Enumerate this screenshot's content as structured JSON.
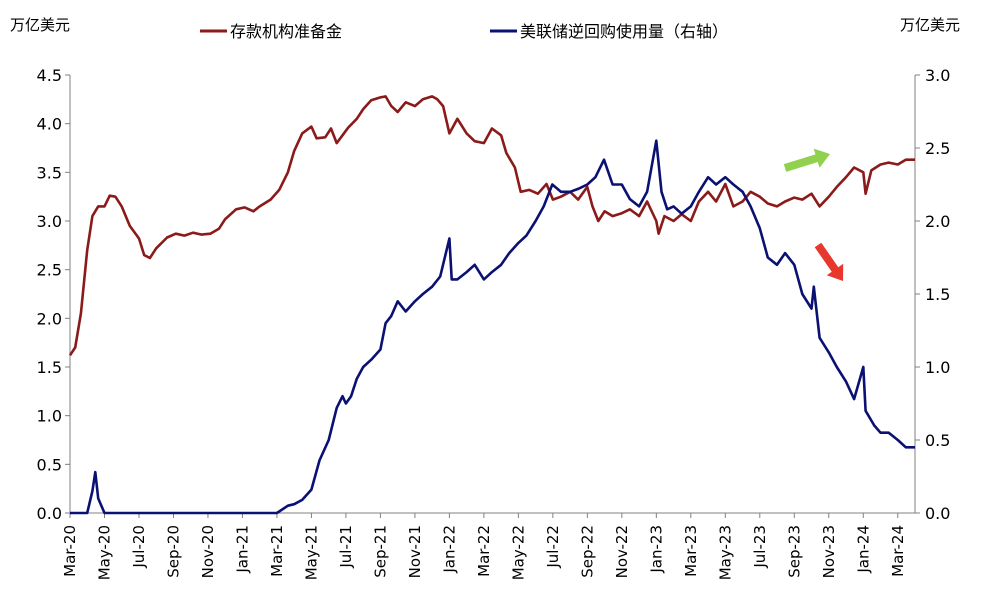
{
  "chart_data": {
    "type": "line",
    "left_unit": "万亿美元",
    "right_unit": "万亿美元",
    "ylim_left": [
      0,
      4.5
    ],
    "ylim_right": [
      0,
      3
    ],
    "yticks_left": [
      "0.0",
      "0.5",
      "1.0",
      "1.5",
      "2.0",
      "2.5",
      "3.0",
      "3.5",
      "4.0",
      "4.5"
    ],
    "yticks_right": [
      "0.0",
      "0.5",
      "1.0",
      "1.5",
      "2.0",
      "2.5",
      "3.0"
    ],
    "x_ticks": [
      {
        "date": "2020-03",
        "label": "Mar-20"
      },
      {
        "date": "2020-05",
        "label": "May-20"
      },
      {
        "date": "2020-07",
        "label": "Jul-20"
      },
      {
        "date": "2020-09",
        "label": "Sep-20"
      },
      {
        "date": "2020-11",
        "label": "Nov-20"
      },
      {
        "date": "2021-01",
        "label": "Jan-21"
      },
      {
        "date": "2021-03",
        "label": "Mar-21"
      },
      {
        "date": "2021-05",
        "label": "May-21"
      },
      {
        "date": "2021-07",
        "label": "Jul-21"
      },
      {
        "date": "2021-09",
        "label": "Sep-21"
      },
      {
        "date": "2021-11",
        "label": "Nov-21"
      },
      {
        "date": "2022-01",
        "label": "Jan-22"
      },
      {
        "date": "2022-03",
        "label": "Mar-22"
      },
      {
        "date": "2022-05",
        "label": "May-22"
      },
      {
        "date": "2022-07",
        "label": "Jul-22"
      },
      {
        "date": "2022-09",
        "label": "Sep-22"
      },
      {
        "date": "2022-11",
        "label": "Nov-22"
      },
      {
        "date": "2023-01",
        "label": "Jan-23"
      },
      {
        "date": "2023-03",
        "label": "Mar-23"
      },
      {
        "date": "2023-05",
        "label": "May-23"
      },
      {
        "date": "2023-07",
        "label": "Jul-23"
      },
      {
        "date": "2023-09",
        "label": "Sep-23"
      },
      {
        "date": "2023-11",
        "label": "Nov-23"
      },
      {
        "date": "2024-01",
        "label": "Jan-24"
      },
      {
        "date": "2024-03",
        "label": "Mar-24"
      }
    ],
    "grid": false,
    "legend_position": "top",
    "series": [
      {
        "name": "存款机构准备金",
        "axis": "left",
        "color": "#8B1A1A",
        "points": [
          [
            "2020-03-01",
            1.62
          ],
          [
            "2020-03-10",
            1.7
          ],
          [
            "2020-03-20",
            2.05
          ],
          [
            "2020-04-01",
            2.7
          ],
          [
            "2020-04-10",
            3.05
          ],
          [
            "2020-04-20",
            3.15
          ],
          [
            "2020-05-01",
            3.15
          ],
          [
            "2020-05-10",
            3.26
          ],
          [
            "2020-05-20",
            3.25
          ],
          [
            "2020-06-01",
            3.15
          ],
          [
            "2020-06-15",
            2.95
          ],
          [
            "2020-07-01",
            2.82
          ],
          [
            "2020-07-10",
            2.65
          ],
          [
            "2020-07-20",
            2.62
          ],
          [
            "2020-08-01",
            2.72
          ],
          [
            "2020-08-20",
            2.83
          ],
          [
            "2020-09-05",
            2.87
          ],
          [
            "2020-09-20",
            2.85
          ],
          [
            "2020-10-05",
            2.88
          ],
          [
            "2020-10-20",
            2.86
          ],
          [
            "2020-11-05",
            2.87
          ],
          [
            "2020-11-20",
            2.92
          ],
          [
            "2020-12-01",
            3.02
          ],
          [
            "2020-12-20",
            3.12
          ],
          [
            "2021-01-05",
            3.14
          ],
          [
            "2021-01-20",
            3.1
          ],
          [
            "2021-02-01",
            3.15
          ],
          [
            "2021-02-20",
            3.22
          ],
          [
            "2021-03-05",
            3.32
          ],
          [
            "2021-03-20",
            3.5
          ],
          [
            "2021-04-01",
            3.72
          ],
          [
            "2021-04-15",
            3.9
          ],
          [
            "2021-05-01",
            3.97
          ],
          [
            "2021-05-10",
            3.85
          ],
          [
            "2021-05-25",
            3.86
          ],
          [
            "2021-06-05",
            3.95
          ],
          [
            "2021-06-15",
            3.8
          ],
          [
            "2021-06-25",
            3.88
          ],
          [
            "2021-07-05",
            3.96
          ],
          [
            "2021-07-20",
            4.05
          ],
          [
            "2021-08-01",
            4.15
          ],
          [
            "2021-08-15",
            4.24
          ],
          [
            "2021-09-01",
            4.27
          ],
          [
            "2021-09-10",
            4.28
          ],
          [
            "2021-09-20",
            4.18
          ],
          [
            "2021-10-01",
            4.12
          ],
          [
            "2021-10-15",
            4.22
          ],
          [
            "2021-11-01",
            4.18
          ],
          [
            "2021-11-15",
            4.25
          ],
          [
            "2021-12-01",
            4.28
          ],
          [
            "2021-12-10",
            4.25
          ],
          [
            "2021-12-20",
            4.18
          ],
          [
            "2022-01-01",
            3.9
          ],
          [
            "2022-01-15",
            4.05
          ],
          [
            "2022-02-01",
            3.9
          ],
          [
            "2022-02-15",
            3.82
          ],
          [
            "2022-03-01",
            3.8
          ],
          [
            "2022-03-15",
            3.95
          ],
          [
            "2022-04-01",
            3.88
          ],
          [
            "2022-04-10",
            3.7
          ],
          [
            "2022-04-25",
            3.55
          ],
          [
            "2022-05-05",
            3.3
          ],
          [
            "2022-05-20",
            3.32
          ],
          [
            "2022-06-05",
            3.28
          ],
          [
            "2022-06-20",
            3.38
          ],
          [
            "2022-07-01",
            3.22
          ],
          [
            "2022-07-15",
            3.25
          ],
          [
            "2022-08-01",
            3.3
          ],
          [
            "2022-08-15",
            3.22
          ],
          [
            "2022-09-01",
            3.35
          ],
          [
            "2022-09-10",
            3.15
          ],
          [
            "2022-09-20",
            3.0
          ],
          [
            "2022-10-01",
            3.1
          ],
          [
            "2022-10-15",
            3.05
          ],
          [
            "2022-11-01",
            3.08
          ],
          [
            "2022-11-15",
            3.12
          ],
          [
            "2022-12-01",
            3.05
          ],
          [
            "2022-12-15",
            3.2
          ],
          [
            "2022-12-31",
            3.0
          ],
          [
            "2023-01-05",
            2.87
          ],
          [
            "2023-01-15",
            3.05
          ],
          [
            "2023-02-01",
            3.0
          ],
          [
            "2023-02-15",
            3.07
          ],
          [
            "2023-03-01",
            3.0
          ],
          [
            "2023-03-15",
            3.2
          ],
          [
            "2023-04-01",
            3.3
          ],
          [
            "2023-04-15",
            3.2
          ],
          [
            "2023-05-01",
            3.38
          ],
          [
            "2023-05-15",
            3.15
          ],
          [
            "2023-06-01",
            3.2
          ],
          [
            "2023-06-15",
            3.3
          ],
          [
            "2023-07-01",
            3.25
          ],
          [
            "2023-07-15",
            3.18
          ],
          [
            "2023-08-01",
            3.15
          ],
          [
            "2023-08-15",
            3.2
          ],
          [
            "2023-09-01",
            3.24
          ],
          [
            "2023-09-15",
            3.22
          ],
          [
            "2023-10-01",
            3.28
          ],
          [
            "2023-10-15",
            3.15
          ],
          [
            "2023-11-01",
            3.25
          ],
          [
            "2023-11-15",
            3.35
          ],
          [
            "2023-12-01",
            3.45
          ],
          [
            "2023-12-15",
            3.55
          ],
          [
            "2024-01-01",
            3.5
          ],
          [
            "2024-01-05",
            3.28
          ],
          [
            "2024-01-15",
            3.52
          ],
          [
            "2024-02-01",
            3.58
          ],
          [
            "2024-02-15",
            3.6
          ],
          [
            "2024-03-01",
            3.58
          ],
          [
            "2024-03-15",
            3.63
          ],
          [
            "2024-03-31",
            3.63
          ]
        ]
      },
      {
        "name": "美联储逆回购使用量（右轴）",
        "axis": "right",
        "color": "#0A1172",
        "points": [
          [
            "2020-03-01",
            0.0
          ],
          [
            "2020-04-01",
            0.0
          ],
          [
            "2020-04-10",
            0.15
          ],
          [
            "2020-04-15",
            0.28
          ],
          [
            "2020-04-20",
            0.1
          ],
          [
            "2020-05-01",
            0.0
          ],
          [
            "2021-03-01",
            0.0
          ],
          [
            "2021-03-20",
            0.05
          ],
          [
            "2021-04-01",
            0.06
          ],
          [
            "2021-04-15",
            0.09
          ],
          [
            "2021-05-01",
            0.16
          ],
          [
            "2021-05-15",
            0.36
          ],
          [
            "2021-06-01",
            0.5
          ],
          [
            "2021-06-15",
            0.72
          ],
          [
            "2021-06-25",
            0.8
          ],
          [
            "2021-07-01",
            0.75
          ],
          [
            "2021-07-10",
            0.8
          ],
          [
            "2021-07-20",
            0.92
          ],
          [
            "2021-08-01",
            1.0
          ],
          [
            "2021-08-15",
            1.05
          ],
          [
            "2021-09-01",
            1.12
          ],
          [
            "2021-09-10",
            1.3
          ],
          [
            "2021-09-20",
            1.35
          ],
          [
            "2021-10-01",
            1.45
          ],
          [
            "2021-10-15",
            1.38
          ],
          [
            "2021-11-01",
            1.45
          ],
          [
            "2021-11-15",
            1.5
          ],
          [
            "2021-12-01",
            1.55
          ],
          [
            "2021-12-15",
            1.62
          ],
          [
            "2021-12-31",
            1.88
          ],
          [
            "2022-01-05",
            1.6
          ],
          [
            "2022-01-15",
            1.6
          ],
          [
            "2022-02-01",
            1.65
          ],
          [
            "2022-02-15",
            1.7
          ],
          [
            "2022-03-01",
            1.6
          ],
          [
            "2022-03-15",
            1.65
          ],
          [
            "2022-04-01",
            1.7
          ],
          [
            "2022-04-15",
            1.78
          ],
          [
            "2022-05-01",
            1.85
          ],
          [
            "2022-05-15",
            1.9
          ],
          [
            "2022-06-01",
            2.0
          ],
          [
            "2022-06-15",
            2.1
          ],
          [
            "2022-06-30",
            2.25
          ],
          [
            "2022-07-15",
            2.2
          ],
          [
            "2022-08-01",
            2.2
          ],
          [
            "2022-08-15",
            2.22
          ],
          [
            "2022-09-01",
            2.25
          ],
          [
            "2022-09-15",
            2.3
          ],
          [
            "2022-09-30",
            2.42
          ],
          [
            "2022-10-15",
            2.25
          ],
          [
            "2022-11-01",
            2.25
          ],
          [
            "2022-11-15",
            2.15
          ],
          [
            "2022-12-01",
            2.1
          ],
          [
            "2022-12-15",
            2.2
          ],
          [
            "2022-12-31",
            2.55
          ],
          [
            "2023-01-10",
            2.2
          ],
          [
            "2023-01-20",
            2.08
          ],
          [
            "2023-02-01",
            2.1
          ],
          [
            "2023-02-15",
            2.05
          ],
          [
            "2023-03-01",
            2.1
          ],
          [
            "2023-03-15",
            2.2
          ],
          [
            "2023-04-01",
            2.3
          ],
          [
            "2023-04-15",
            2.25
          ],
          [
            "2023-05-01",
            2.3
          ],
          [
            "2023-05-15",
            2.25
          ],
          [
            "2023-06-01",
            2.2
          ],
          [
            "2023-06-15",
            2.1
          ],
          [
            "2023-07-01",
            1.95
          ],
          [
            "2023-07-15",
            1.75
          ],
          [
            "2023-08-01",
            1.7
          ],
          [
            "2023-08-15",
            1.78
          ],
          [
            "2023-09-01",
            1.7
          ],
          [
            "2023-09-15",
            1.5
          ],
          [
            "2023-10-01",
            1.4
          ],
          [
            "2023-10-05",
            1.55
          ],
          [
            "2023-10-15",
            1.2
          ],
          [
            "2023-11-01",
            1.1
          ],
          [
            "2023-11-15",
            1.0
          ],
          [
            "2023-12-01",
            0.9
          ],
          [
            "2023-12-15",
            0.78
          ],
          [
            "2023-12-31",
            1.0
          ],
          [
            "2024-01-05",
            0.7
          ],
          [
            "2024-01-20",
            0.6
          ],
          [
            "2024-02-01",
            0.55
          ],
          [
            "2024-02-15",
            0.55
          ],
          [
            "2024-03-01",
            0.5
          ],
          [
            "2024-03-15",
            0.45
          ],
          [
            "2024-03-31",
            0.45
          ]
        ]
      }
    ]
  },
  "annotations": {
    "green_arrow_color": "#92D050",
    "red_arrow_color": "#E8382E"
  }
}
